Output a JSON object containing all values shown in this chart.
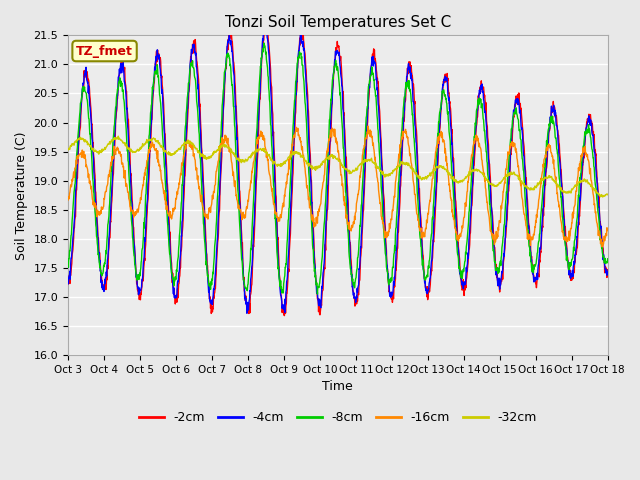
{
  "title": "Tonzi Soil Temperatures Set C",
  "xlabel": "Time",
  "ylabel": "Soil Temperature (C)",
  "ylim": [
    16.0,
    21.5
  ],
  "annotation_text": "TZ_fmet",
  "annotation_color": "#cc0000",
  "annotation_bg": "#ffffcc",
  "annotation_border": "#888800",
  "xtick_labels": [
    "Oct 3",
    "Oct 4",
    "Oct 5",
    "Oct 6",
    "Oct 7",
    "Oct 8",
    "Oct 9",
    "Oct 10",
    "Oct 11",
    "Oct 12",
    "Oct 13",
    "Oct 14",
    "Oct 15",
    "Oct 16",
    "Oct 17",
    "Oct 18"
  ],
  "ytick_values": [
    16.0,
    16.5,
    17.0,
    17.5,
    18.0,
    18.5,
    19.0,
    19.5,
    20.0,
    20.5,
    21.0,
    21.5
  ],
  "colors": {
    "-2cm": "#ff0000",
    "-4cm": "#0000ff",
    "-8cm": "#00cc00",
    "-16cm": "#ff8800",
    "-32cm": "#cccc00"
  },
  "bg_color": "#e8e8e8",
  "plot_bg": "#ececec",
  "grid_color": "#ffffff",
  "legend_labels": [
    "-2cm",
    "-4cm",
    "-8cm",
    "-16cm",
    "-32cm"
  ],
  "legend_colors": [
    "#ff0000",
    "#0000ff",
    "#00cc00",
    "#ff8800",
    "#cccc00"
  ]
}
